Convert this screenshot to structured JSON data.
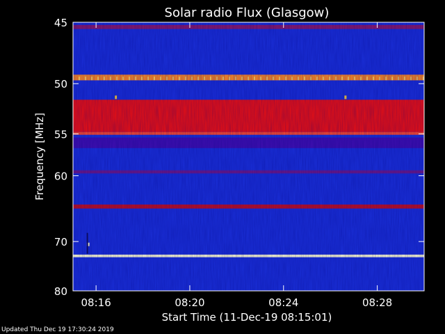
{
  "chart_data": {
    "type": "heatmap",
    "title": "Solar radio Flux (Glasgow)",
    "xlabel": "Start Time (11-Dec-19 08:15:01)",
    "ylabel": "Frequency [MHz]",
    "x_ticks": [
      "08:16",
      "08:20",
      "08:24",
      "08:28"
    ],
    "x_tick_minutes": [
      16,
      20,
      24,
      28
    ],
    "x_range_minutes": [
      15.0167,
      30.0
    ],
    "y_ticks": [
      45,
      50,
      55,
      60,
      70,
      80
    ],
    "y_range": [
      45,
      80
    ],
    "y_scale": "reciprocal",
    "grid": false,
    "colorscale": [
      "#0000ff",
      "#ff0000",
      "#ffff66",
      "#ffffff"
    ],
    "background_color": "#1a2fd8",
    "bands_mhz": [
      {
        "from": 51.5,
        "to": 54.8,
        "color": "#ee1010"
      },
      {
        "from": 54.8,
        "to": 55.1,
        "color": "#ff4a2a"
      },
      {
        "from": 55.4,
        "to": 56.6,
        "color": "#3f0fb0"
      },
      {
        "from": 59.3,
        "to": 59.7,
        "color": "#6a1a8a"
      },
      {
        "from": 64.0,
        "to": 64.6,
        "color": "#c01020"
      },
      {
        "from": 72.4,
        "to": 72.9,
        "color": "#ffffd0"
      },
      {
        "from": 45.2,
        "to": 45.5,
        "color": "#8a1a6a"
      },
      {
        "from": 49.2,
        "to": 49.7,
        "color": "#ff8a20"
      }
    ]
  },
  "footer": {
    "updated_label": "Updated Thu Dec 19 17:30:24 2019"
  }
}
